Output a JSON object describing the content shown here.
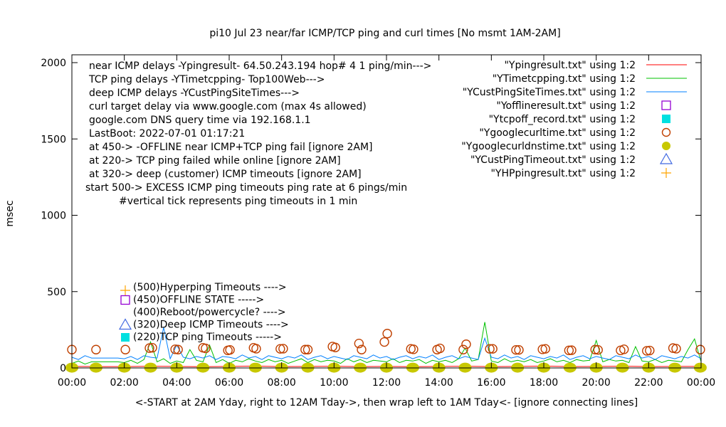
{
  "chart_data": {
    "type": "line",
    "title": "pi10 Jul 23  near/far ICMP/TCP ping and curl times [No msmt 1AM-2AM]",
    "xlabel": "<-START at 2AM Yday, right to 12AM Tday->, then wrap left to 1AM Tday<- [ignore connecting lines]",
    "ylabel": "msec",
    "xlim_hours": [
      0,
      24
    ],
    "ylim": [
      0,
      2050
    ],
    "x_ticks": [
      "00:00",
      "02:00",
      "04:00",
      "06:00",
      "08:00",
      "10:00",
      "12:00",
      "14:00",
      "16:00",
      "18:00",
      "20:00",
      "22:00",
      "00:00"
    ],
    "y_ticks": [
      0,
      500,
      1000,
      1500,
      2000
    ],
    "grid": false,
    "legend_placement": "top-right",
    "notes": [
      "near ICMP delays -Ypingresult- 64.50.243.194 hop# 4 1 ping/min--->",
      "TCP ping delays -YTimetcpping- Top100Web--->",
      "deep ICMP delays -YCustPingSiteTimes--->",
      "curl target delay via www.google.com (max 4s allowed)",
      "google.com DNS query time via 192.168.1.1",
      "LastBoot: 2022-07-01 01:17:21",
      "at 450-> -OFFLINE near ICMP+TCP ping fail [ignore 2AM]",
      "at 220-> TCP ping failed while online [ignore 2AM]",
      "at 320-> deep (customer) ICMP timeouts [ignore 2AM]",
      "start 500-> EXCESS ICMP ping timeouts ping rate at 6 pings/min",
      "#vertical tick represents ping timeouts in 1 min"
    ],
    "marker_labels": [
      {
        "text": "(500)Hyperping Timeouts ---->",
        "symbol": "plus",
        "color": "#ffa500"
      },
      {
        "text": "(450)OFFLINE STATE ----->",
        "symbol": "square-open",
        "color": "#9400d3"
      },
      {
        "text": "(400)Reboot/powercycle? ---->",
        "symbol": "none",
        "color": ""
      },
      {
        "text": "(320)Deep ICMP Timeouts ---->",
        "symbol": "triangle-open",
        "color": "#4169e1"
      },
      {
        "text": "(220)TCP ping Timeouts ----->",
        "symbol": "square-filled",
        "color": "#00e0e0"
      }
    ],
    "legend": [
      {
        "label": "\"Ypingresult.txt\" using 1:2",
        "symbol": "line",
        "color": "#ff0000"
      },
      {
        "label": "\"YTimetcpping.txt\" using 1:2",
        "symbol": "line",
        "color": "#00c000"
      },
      {
        "label": "\"YCustPingSiteTimes.txt\" using 1:2",
        "symbol": "line",
        "color": "#0080ff"
      },
      {
        "label": "\"Yofflineresult.txt\" using 1:2",
        "symbol": "square-open",
        "color": "#9400d3"
      },
      {
        "label": "\"Ytcpoff_record.txt\" using 1:2",
        "symbol": "square-filled",
        "color": "#00e0e0"
      },
      {
        "label": "\"Ygooglecurltime.txt\" using 1:2",
        "symbol": "circle-open",
        "color": "#c04000"
      },
      {
        "label": "\"Ygooglecurldnstime.txt\" using 1:2",
        "symbol": "circle-filled",
        "color": "#c8c800"
      },
      {
        "label": "\"YCustPingTimeout.txt\" using 1:2",
        "symbol": "triangle-open",
        "color": "#4169e1"
      },
      {
        "label": "\"YHPpingresult.txt\" using 1:2",
        "symbol": "plus",
        "color": "#ffa500"
      }
    ],
    "series": [
      {
        "name": "\"Ypingresult.txt\" using 1:2",
        "type": "line",
        "color": "#ff0000",
        "x_step_hours": 1,
        "values": [
          10,
          9,
          9,
          11,
          10,
          8,
          10,
          12,
          9,
          10,
          11,
          9,
          10,
          8,
          10,
          11,
          9,
          10,
          12,
          9,
          10,
          11,
          9,
          10,
          10
        ]
      },
      {
        "name": "\"YTimetcpping.txt\" using 1:2",
        "type": "line",
        "color": "#00c000",
        "x_step_hours": 0.25,
        "values": [
          30,
          45,
          25,
          40,
          40,
          40,
          40,
          40,
          35,
          50,
          30,
          55,
          170,
          40,
          60,
          30,
          45,
          35,
          120,
          50,
          40,
          150,
          35,
          55,
          30,
          50,
          40,
          60,
          45,
          35,
          55,
          40,
          50,
          30,
          45,
          60,
          35,
          55,
          40,
          50,
          45,
          30,
          60,
          40,
          55,
          35,
          50,
          45,
          40,
          60,
          35,
          50,
          45,
          55,
          30,
          50,
          40,
          50,
          35,
          60,
          130,
          45,
          55,
          300,
          45,
          35,
          60,
          40,
          50,
          40,
          55,
          35,
          45,
          60,
          40,
          50,
          35,
          55,
          45,
          50,
          180,
          40,
          55,
          45,
          50,
          35,
          140,
          45,
          40,
          55,
          35,
          50,
          45,
          40,
          120,
          190,
          40
        ]
      },
      {
        "name": "\"YCustPingSiteTimes.txt\" using 1:2",
        "type": "line",
        "color": "#0080ff",
        "x_step_hours": 0.25,
        "values": [
          70,
          55,
          80,
          65,
          65,
          65,
          65,
          65,
          60,
          75,
          55,
          80,
          70,
          65,
          265,
          60,
          150,
          70,
          60,
          75,
          65,
          80,
          55,
          75,
          70,
          60,
          85,
          65,
          75,
          55,
          80,
          70,
          60,
          75,
          65,
          85,
          55,
          70,
          80,
          60,
          75,
          65,
          55,
          80,
          70,
          60,
          85,
          65,
          75,
          55,
          70,
          80,
          60,
          75,
          65,
          85,
          55,
          70,
          80,
          60,
          75,
          65,
          55,
          195,
          70,
          60,
          85,
          65,
          75,
          55,
          80,
          70,
          60,
          75,
          65,
          85,
          55,
          70,
          80,
          60,
          75,
          65,
          55,
          80,
          70,
          60,
          85,
          65,
          75,
          55,
          80,
          70,
          60,
          75,
          65,
          85,
          60
        ]
      },
      {
        "name": "\"Ygooglecurltime.txt\" using 1:2",
        "type": "scatter",
        "color": "#c04000",
        "points": [
          [
            0,
            120
          ],
          [
            0.92,
            120
          ],
          [
            2.04,
            120
          ],
          [
            2.96,
            130
          ],
          [
            3.07,
            132
          ],
          [
            3.94,
            122
          ],
          [
            4.05,
            120
          ],
          [
            5.0,
            132
          ],
          [
            5.1,
            128
          ],
          [
            5.95,
            115
          ],
          [
            6.03,
            118
          ],
          [
            6.93,
            132
          ],
          [
            7.03,
            126
          ],
          [
            7.95,
            125
          ],
          [
            8.06,
            126
          ],
          [
            8.9,
            120
          ],
          [
            9.0,
            120
          ],
          [
            9.94,
            140
          ],
          [
            10.05,
            134
          ],
          [
            10.95,
            160
          ],
          [
            11.05,
            120
          ],
          [
            11.92,
            170
          ],
          [
            12.03,
            225
          ],
          [
            12.93,
            125
          ],
          [
            13.03,
            122
          ],
          [
            13.93,
            120
          ],
          [
            14.04,
            128
          ],
          [
            14.93,
            120
          ],
          [
            15.04,
            155
          ],
          [
            15.94,
            125
          ],
          [
            16.05,
            125
          ],
          [
            16.94,
            118
          ],
          [
            17.05,
            118
          ],
          [
            17.95,
            122
          ],
          [
            18.06,
            125
          ],
          [
            18.96,
            115
          ],
          [
            19.06,
            116
          ],
          [
            19.96,
            120
          ],
          [
            20.07,
            118
          ],
          [
            20.93,
            115
          ],
          [
            21.06,
            122
          ],
          [
            21.93,
            112
          ],
          [
            22.04,
            114
          ],
          [
            22.93,
            130
          ],
          [
            23.05,
            126
          ],
          [
            23.97,
            120
          ]
        ]
      },
      {
        "name": "\"Ygooglecurldnstime.txt\" using 1:2",
        "type": "scatter",
        "color": "#c8c800",
        "points": [
          [
            0,
            2
          ],
          [
            0.92,
            2
          ],
          [
            2.0,
            2
          ],
          [
            3.0,
            2
          ],
          [
            4.0,
            2
          ],
          [
            5.0,
            2
          ],
          [
            6.0,
            2
          ],
          [
            7.0,
            2
          ],
          [
            8.0,
            2
          ],
          [
            9.0,
            2
          ],
          [
            10.0,
            2
          ],
          [
            11.0,
            2
          ],
          [
            12.0,
            2
          ],
          [
            13.0,
            2
          ],
          [
            14.0,
            2
          ],
          [
            15.0,
            2
          ],
          [
            16.0,
            2
          ],
          [
            17.0,
            2
          ],
          [
            18.0,
            2
          ],
          [
            19.0,
            2
          ],
          [
            20.0,
            2
          ],
          [
            21.0,
            2
          ],
          [
            22.0,
            2
          ],
          [
            23.0,
            2
          ],
          [
            23.97,
            2
          ]
        ]
      }
    ]
  }
}
